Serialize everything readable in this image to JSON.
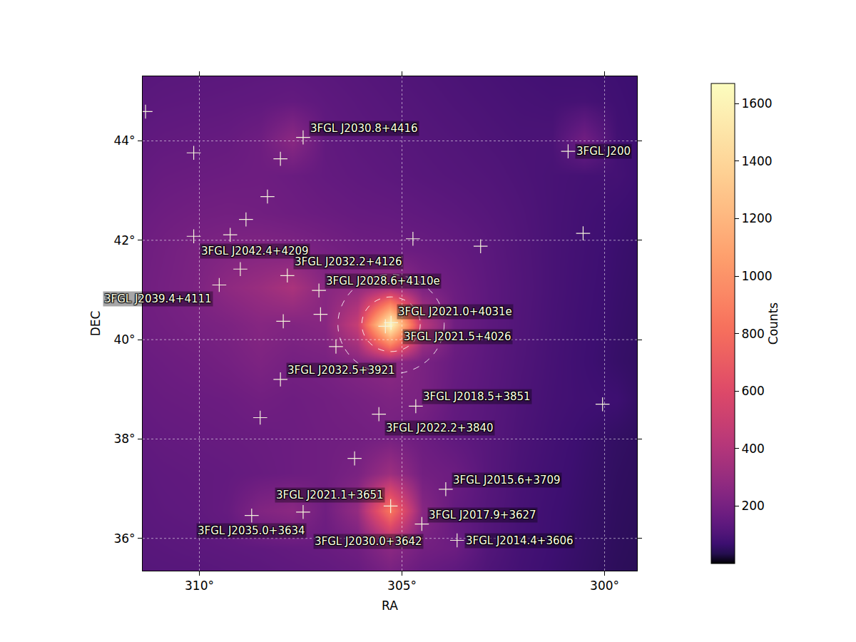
{
  "chart_data": {
    "type": "heatmap",
    "x_label": "RA",
    "y_label": "DEC",
    "colorbar_label": "Counts",
    "color": "magma",
    "grid": true,
    "xlim": [
      311.4,
      299.2
    ],
    "ylim": [
      35.35,
      45.3
    ],
    "xticks": [
      {
        "value": 310,
        "label": "310°"
      },
      {
        "value": 305,
        "label": "305°"
      },
      {
        "value": 300,
        "label": "300°"
      }
    ],
    "yticks": [
      {
        "value": 36,
        "label": "36°"
      },
      {
        "value": 38,
        "label": "38°"
      },
      {
        "value": 40,
        "label": "40°"
      },
      {
        "value": 42,
        "label": "42°"
      },
      {
        "value": 44,
        "label": "44°"
      }
    ],
    "zlim": [
      0,
      1670
    ],
    "zticks": [
      200,
      400,
      600,
      800,
      1000,
      1200,
      1400,
      1600
    ],
    "x": [
      311.7,
      310.9,
      310.1,
      309.3,
      308.5,
      307.7,
      306.9,
      306.1,
      305.3,
      304.5,
      303.7,
      302.9,
      302.1,
      301.3,
      300.5,
      299.7,
      298.9
    ],
    "y": [
      35.05,
      35.8,
      36.55,
      37.3,
      38.05,
      38.8,
      39.55,
      40.3,
      41.05,
      41.8,
      42.55,
      43.3,
      44.05,
      44.8,
      45.55
    ],
    "z": [
      [
        110,
        115,
        115,
        120,
        125,
        130,
        135,
        145,
        170,
        140,
        115,
        95,
        80,
        65,
        55,
        45,
        40
      ],
      [
        120,
        125,
        130,
        135,
        140,
        150,
        160,
        180,
        260,
        190,
        170,
        110,
        85,
        70,
        58,
        48,
        42
      ],
      [
        125,
        135,
        140,
        155,
        230,
        260,
        180,
        290,
        850,
        250,
        150,
        115,
        88,
        72,
        60,
        50,
        44
      ],
      [
        130,
        140,
        145,
        150,
        160,
        170,
        180,
        210,
        320,
        190,
        170,
        120,
        92,
        76,
        63,
        52,
        46
      ],
      [
        140,
        150,
        155,
        160,
        165,
        170,
        180,
        185,
        195,
        170,
        140,
        120,
        96,
        80,
        66,
        55,
        48
      ],
      [
        150,
        160,
        165,
        170,
        185,
        175,
        185,
        200,
        220,
        210,
        150,
        125,
        100,
        84,
        75,
        70,
        50
      ],
      [
        160,
        170,
        180,
        195,
        220,
        195,
        205,
        240,
        270,
        210,
        160,
        130,
        104,
        86,
        72,
        60,
        52
      ],
      [
        170,
        185,
        200,
        215,
        245,
        230,
        250,
        480,
        1650,
        430,
        180,
        135,
        108,
        88,
        74,
        62,
        54
      ],
      [
        175,
        195,
        215,
        270,
        310,
        370,
        250,
        280,
        330,
        210,
        170,
        135,
        110,
        90,
        76,
        64,
        56
      ],
      [
        170,
        190,
        210,
        225,
        235,
        225,
        200,
        180,
        175,
        165,
        150,
        130,
        108,
        90,
        78,
        66,
        58
      ],
      [
        160,
        175,
        185,
        190,
        185,
        175,
        165,
        155,
        150,
        140,
        130,
        118,
        104,
        90,
        80,
        70,
        62
      ],
      [
        145,
        160,
        165,
        170,
        175,
        165,
        150,
        140,
        132,
        122,
        115,
        108,
        98,
        90,
        84,
        82,
        66
      ],
      [
        135,
        145,
        150,
        155,
        175,
        260,
        145,
        132,
        124,
        115,
        108,
        100,
        94,
        95,
        180,
        80,
        66
      ],
      [
        125,
        132,
        135,
        138,
        142,
        150,
        135,
        125,
        116,
        108,
        100,
        94,
        88,
        84,
        86,
        75,
        64
      ],
      [
        118,
        122,
        125,
        127,
        130,
        128,
        124,
        116,
        108,
        100,
        94,
        88,
        82,
        78,
        74,
        70,
        64
      ]
    ],
    "sources": {
      "marker": "cross",
      "ra": [
        311.33,
        310.14,
        307.44,
        308.0,
        308.32,
        308.85,
        310.14,
        309.24,
        304.73,
        303.06,
        300.53,
        309.51,
        308.99,
        307.83,
        307.05,
        307.01,
        307.93,
        306.63,
        305.41,
        305.27,
        305.57,
        304.66,
        308.0,
        308.5,
        306.17,
        300.05,
        308.71,
        307.44,
        305.28,
        304.51,
        303.64,
        303.92,
        300.9
      ],
      "dec": [
        44.59,
        43.76,
        44.07,
        43.64,
        42.88,
        42.42,
        42.08,
        42.11,
        42.03,
        41.88,
        42.14,
        41.1,
        41.42,
        41.29,
        40.99,
        40.51,
        40.37,
        39.86,
        40.27,
        40.34,
        38.5,
        38.66,
        39.2,
        38.43,
        37.61,
        38.7,
        36.46,
        36.53,
        36.65,
        36.29,
        35.96,
        36.99,
        43.79
      ],
      "labels": [
        null,
        null,
        "3FGL J2030.8+4416",
        null,
        null,
        null,
        "3FGL J2042.4+4209",
        null,
        null,
        null,
        null,
        "3FGL J2039.4+4111",
        null,
        "3FGL J2032.2+4126",
        "3FGL J2028.6+4110e",
        null,
        null,
        null,
        "3FGL J2021.5+4026",
        "3FGL J2021.0+4031e",
        "3FGL J2022.2+3840",
        "3FGL J2018.5+3851",
        "3FGL J2032.5+3921",
        null,
        null,
        null,
        "3FGL J2035.0+3634",
        "3FGL J2030.0+3642",
        "3FGL J2021.1+3651",
        "3FGL J2017.9+3627",
        "3FGL J2014.4+3606",
        "3FGL J2015.6+3709",
        "3FGL J200"
      ]
    },
    "regions": {
      "line_style": "dashed",
      "ra": [
        305.27,
        305.27
      ],
      "dec": [
        40.31,
        40.31
      ],
      "radius": [
        0.55,
        1.0
      ]
    }
  }
}
